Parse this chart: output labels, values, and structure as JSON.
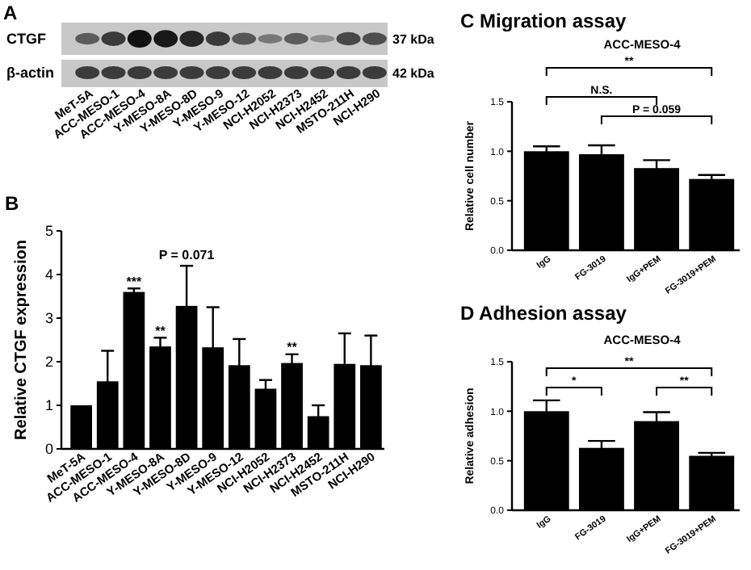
{
  "chart_data": [
    {
      "type": "other",
      "title": "A",
      "annotations": [
        "CTGF",
        "β-actin",
        "37 kDa",
        "42 kDa",
        "MeT-5A",
        "ACC-MESO-1",
        "ACC-MESO-4",
        "Y-MESO-8A",
        "Y-MESO-8D",
        "Y-MESO-9",
        "Y-MESO-12",
        "NCI-H2052",
        "NCI-H2373",
        "NCI-H2452",
        "MSTO-211H",
        "NCI-H290"
      ]
    },
    {
      "type": "bar",
      "title": "B",
      "ylabel": "Relative CTGF expression",
      "color": "#000000",
      "categories": [
        "MeT-5A",
        "ACC-MESO-1",
        "ACC-MESO-4",
        "Y-MESO-8A",
        "Y-MESO-8D",
        "Y-MESO-9",
        "Y-MESO-12",
        "NCI-H2052",
        "NCI-H2373",
        "NCI-H2452",
        "MSTO-211H",
        "NCI-H290"
      ],
      "values": [
        1.0,
        1.55,
        3.6,
        2.35,
        3.28,
        2.33,
        1.92,
        1.38,
        1.97,
        0.75,
        1.95,
        1.92
      ],
      "errors": [
        null,
        0.7,
        0.08,
        0.2,
        0.92,
        0.92,
        0.6,
        0.2,
        0.2,
        0.25,
        0.7,
        0.68
      ],
      "ylim": [
        0,
        5
      ],
      "yticks": [
        0,
        1,
        2,
        3,
        4,
        5
      ],
      "annotations": [
        {
          "text": "***",
          "x": "ACC-MESO-4",
          "y": 3.75
        },
        {
          "text": "**",
          "x": "Y-MESO-8A",
          "y": 2.62
        },
        {
          "text": "P = 0.071",
          "x": "Y-MESO-8D",
          "y": 4.35
        },
        {
          "text": "**",
          "x": "NCI-H2373",
          "y": 2.24
        }
      ]
    },
    {
      "type": "bar",
      "title": "C  Migration assay",
      "subtitle": "ACC-MESO-4",
      "ylabel": "Relative cell number",
      "color": "#000000",
      "categories": [
        "IgG",
        "FG-3019",
        "IgG+PEM",
        "FG-3019+PEM"
      ],
      "values": [
        1.0,
        0.97,
        0.83,
        0.72
      ],
      "errors": [
        0.05,
        0.09,
        0.08,
        0.04
      ],
      "ylim": [
        0,
        1.5
      ],
      "yticks": [
        {
          "value": 0,
          "label": "0.0"
        },
        {
          "value": 0.5,
          "label": "0.5"
        },
        {
          "value": 1,
          "label": "1.0"
        },
        {
          "value": 1.5,
          "label": "1.5"
        }
      ],
      "annotations": [
        "**",
        "N.S.",
        "P = 0.059"
      ]
    },
    {
      "type": "bar",
      "title": "D  Adhesion assay",
      "subtitle": "ACC-MESO-4",
      "ylabel": "Relative adhesion",
      "color": "#000000",
      "categories": [
        "IgG",
        "FG-3019",
        "IgG+PEM",
        "FG-3019+PEM"
      ],
      "values": [
        1.0,
        0.63,
        0.9,
        0.55
      ],
      "errors": [
        0.11,
        0.07,
        0.09,
        0.03
      ],
      "ylim": [
        0,
        1.5
      ],
      "yticks": [
        {
          "value": 0,
          "label": "0.0"
        },
        {
          "value": 0.5,
          "label": "0.5"
        },
        {
          "value": 1,
          "label": "1.0"
        },
        {
          "value": 1.5,
          "label": "1.5"
        }
      ],
      "annotations": [
        "**",
        "*",
        "**"
      ]
    }
  ]
}
